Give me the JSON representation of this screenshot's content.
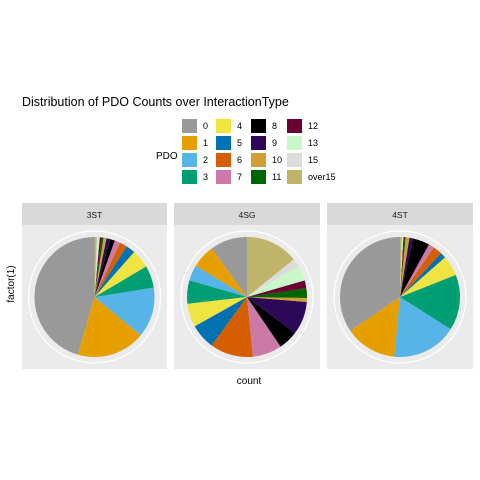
{
  "chart_data": {
    "type": "pie",
    "title": "Distribution of PDO Counts over InteractionType",
    "xlabel": "count",
    "ylabel": "factor(1)",
    "legend": {
      "title": "PDO",
      "placement": "top",
      "entries": [
        {
          "label": "0",
          "color": "#999999"
        },
        {
          "label": "1",
          "color": "#E69F00"
        },
        {
          "label": "2",
          "color": "#56B4E9"
        },
        {
          "label": "3",
          "color": "#009E73"
        },
        {
          "label": "4",
          "color": "#F0E442"
        },
        {
          "label": "5",
          "color": "#0072B2"
        },
        {
          "label": "6",
          "color": "#D55E00"
        },
        {
          "label": "7",
          "color": "#CC79A7"
        },
        {
          "label": "8",
          "color": "#000000"
        },
        {
          "label": "9",
          "color": "#2E0858"
        },
        {
          "label": "10",
          "color": "#D1A035"
        },
        {
          "label": "11",
          "color": "#006400"
        },
        {
          "label": "12",
          "color": "#6B0033"
        },
        {
          "label": "13",
          "color": "#C8F7C8"
        },
        {
          "label": "15",
          "color": "#DCDCDC"
        },
        {
          "label": "over15",
          "color": "#C0B46A"
        }
      ]
    },
    "facets": [
      {
        "label": "3ST",
        "slices": [
          {
            "category": "0",
            "value": 0.455
          },
          {
            "category": "1",
            "value": 0.185
          },
          {
            "category": "2",
            "value": 0.135
          },
          {
            "category": "3",
            "value": 0.06
          },
          {
            "category": "4",
            "value": 0.05
          },
          {
            "category": "5",
            "value": 0.025
          },
          {
            "category": "6",
            "value": 0.02
          },
          {
            "category": "7",
            "value": 0.015
          },
          {
            "category": "8",
            "value": 0.013
          },
          {
            "category": "9",
            "value": 0.01
          },
          {
            "category": "10",
            "value": 0.008
          },
          {
            "category": "11",
            "value": 0.005
          },
          {
            "category": "12",
            "value": 0.005
          },
          {
            "category": "13",
            "value": 0.004
          },
          {
            "category": "15",
            "value": 0.004
          },
          {
            "category": "over15",
            "value": 0.006
          }
        ]
      },
      {
        "label": "4SG",
        "slices": [
          {
            "category": "0",
            "value": 0.095
          },
          {
            "category": "1",
            "value": 0.06
          },
          {
            "category": "2",
            "value": 0.04
          },
          {
            "category": "3",
            "value": 0.06
          },
          {
            "category": "4",
            "value": 0.06
          },
          {
            "category": "5",
            "value": 0.065
          },
          {
            "category": "6",
            "value": 0.11
          },
          {
            "category": "7",
            "value": 0.075
          },
          {
            "category": "8",
            "value": 0.05
          },
          {
            "category": "9",
            "value": 0.085
          },
          {
            "category": "10",
            "value": 0.01
          },
          {
            "category": "11",
            "value": 0.025
          },
          {
            "category": "12",
            "value": 0.02
          },
          {
            "category": "13",
            "value": 0.04
          },
          {
            "category": "15",
            "value": 0.02
          },
          {
            "category": "over15",
            "value": 0.135
          }
        ]
      },
      {
        "label": "4ST",
        "slices": [
          {
            "category": "0",
            "value": 0.345
          },
          {
            "category": "1",
            "value": 0.14
          },
          {
            "category": "2",
            "value": 0.175
          },
          {
            "category": "3",
            "value": 0.15
          },
          {
            "category": "4",
            "value": 0.055
          },
          {
            "category": "5",
            "value": 0.015
          },
          {
            "category": "6",
            "value": 0.025
          },
          {
            "category": "7",
            "value": 0.015
          },
          {
            "category": "8",
            "value": 0.045
          },
          {
            "category": "9",
            "value": 0.01
          },
          {
            "category": "10",
            "value": 0.01
          },
          {
            "category": "11",
            "value": 0.003
          },
          {
            "category": "12",
            "value": 0.003
          },
          {
            "category": "13",
            "value": 0.002
          },
          {
            "category": "15",
            "value": 0.002
          },
          {
            "category": "over15",
            "value": 0.005
          }
        ]
      }
    ]
  }
}
